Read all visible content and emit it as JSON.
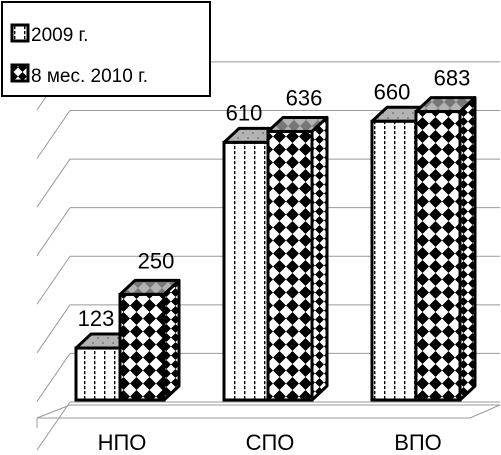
{
  "chart_data": {
    "type": "bar",
    "title": "",
    "xlabel": "",
    "ylabel": "",
    "categories": [
      "НПО",
      "СПО",
      "ВПО"
    ],
    "series": [
      {
        "name": "2009 г.",
        "values": [
          123,
          610,
          660
        ]
      },
      {
        "name": "8 мес. 2010 г.",
        "values": [
          250,
          636,
          683
        ]
      }
    ],
    "ylim": [
      0,
      800
    ],
    "grid": true,
    "legend": "top-left",
    "three_d": true,
    "colors": {
      "series_fill": "#ffffff",
      "top_face": "#b3b3b3",
      "grid": "#999999",
      "outline": "#000000"
    }
  }
}
